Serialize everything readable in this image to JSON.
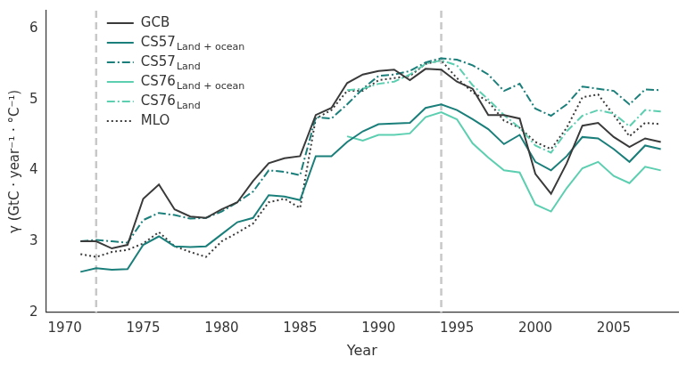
{
  "chart_data": {
    "type": "line",
    "x_label": "Year",
    "y_label": "γ (GtC · year⁻¹ · °C⁻¹)",
    "x": [
      1971,
      1972,
      1973,
      1974,
      1975,
      1976,
      1977,
      1978,
      1979,
      1980,
      1981,
      1982,
      1983,
      1984,
      1985,
      1986,
      1987,
      1988,
      1989,
      1990,
      1991,
      1992,
      1993,
      1994,
      1995,
      1996,
      1997,
      1998,
      1999,
      2000,
      2001,
      2002,
      2003,
      2004,
      2005,
      2006,
      2007,
      2008
    ],
    "xlim": [
      1968.8,
      2009.1
    ],
    "xticks": [
      1970,
      1975,
      1980,
      1985,
      1990,
      1995,
      2000,
      2005
    ],
    "ylim": [
      2,
      6.25
    ],
    "yticks": [
      2,
      3,
      4,
      5,
      6
    ],
    "grid": false,
    "legend": "upper left",
    "vertical_lines": [
      1972,
      1994
    ],
    "series": [
      {
        "name": "GCB",
        "color": "#3a3a3a",
        "line_style": "solid",
        "values": [
          3.0,
          3.0,
          2.9,
          2.95,
          3.6,
          3.8,
          3.45,
          3.35,
          3.33,
          3.45,
          3.55,
          3.85,
          4.1,
          4.17,
          4.2,
          4.78,
          4.88,
          5.23,
          5.35,
          5.4,
          5.42,
          5.27,
          5.43,
          5.42,
          5.25,
          5.15,
          4.78,
          4.78,
          4.73,
          3.95,
          3.67,
          4.1,
          4.63,
          4.67,
          4.47,
          4.33,
          4.45,
          4.4
        ]
      },
      {
        "name": "CS57Land + ocean",
        "color": "#1a7f7a",
        "line_style": "solid",
        "values": [
          2.57,
          2.62,
          2.6,
          2.61,
          2.95,
          3.07,
          2.93,
          2.92,
          2.93,
          3.1,
          3.27,
          3.33,
          3.65,
          3.63,
          3.58,
          4.2,
          4.2,
          4.4,
          4.55,
          4.65,
          4.66,
          4.67,
          4.88,
          4.93,
          4.85,
          4.72,
          4.58,
          4.37,
          4.5,
          4.12,
          4.0,
          4.2,
          4.47,
          4.45,
          4.3,
          4.12,
          4.35,
          4.3
        ]
      },
      {
        "name": "CS57Land",
        "color": "#1a7f7a",
        "line_style": "dashdot",
        "values": [
          3.0,
          3.02,
          3.0,
          2.98,
          3.3,
          3.4,
          3.37,
          3.32,
          3.33,
          3.42,
          3.55,
          3.7,
          4.0,
          3.98,
          3.93,
          4.75,
          4.73,
          4.93,
          5.15,
          5.33,
          5.35,
          5.4,
          5.52,
          5.58,
          5.56,
          5.48,
          5.35,
          5.12,
          5.22,
          4.87,
          4.77,
          4.93,
          5.18,
          5.15,
          5.12,
          4.93,
          5.14,
          5.13
        ]
      },
      {
        "name": "CS76Land + ocean",
        "color": "#5ccfb0",
        "line_style": "solid",
        "values": [
          null,
          null,
          null,
          null,
          null,
          null,
          null,
          null,
          null,
          null,
          null,
          null,
          null,
          null,
          null,
          null,
          null,
          4.48,
          4.42,
          4.5,
          4.5,
          4.52,
          4.75,
          4.82,
          4.72,
          4.38,
          4.18,
          4.0,
          3.97,
          3.52,
          3.42,
          3.75,
          4.03,
          4.12,
          3.92,
          3.82,
          4.05,
          4.0
        ]
      },
      {
        "name": "CS76Land",
        "color": "#5ccfb0",
        "line_style": "dashdot",
        "values": [
          null,
          null,
          null,
          null,
          null,
          null,
          null,
          null,
          null,
          null,
          null,
          null,
          null,
          null,
          null,
          null,
          null,
          5.13,
          5.15,
          5.22,
          5.25,
          5.35,
          5.5,
          5.55,
          5.48,
          5.2,
          5.0,
          4.78,
          4.6,
          4.35,
          4.25,
          4.55,
          4.77,
          4.85,
          4.8,
          4.62,
          4.85,
          4.83
        ]
      },
      {
        "name": "MLO",
        "color": "#3a3a3a",
        "line_style": "dotted",
        "values": [
          2.82,
          2.78,
          2.85,
          2.88,
          2.97,
          3.13,
          2.93,
          2.85,
          2.78,
          3.0,
          3.12,
          3.25,
          3.55,
          3.6,
          3.47,
          4.73,
          4.85,
          5.12,
          5.12,
          5.27,
          5.3,
          5.33,
          5.5,
          5.55,
          5.3,
          5.1,
          4.97,
          4.7,
          4.6,
          4.4,
          4.3,
          4.6,
          5.03,
          5.07,
          4.78,
          4.48,
          4.67,
          4.65
        ]
      }
    ]
  }
}
